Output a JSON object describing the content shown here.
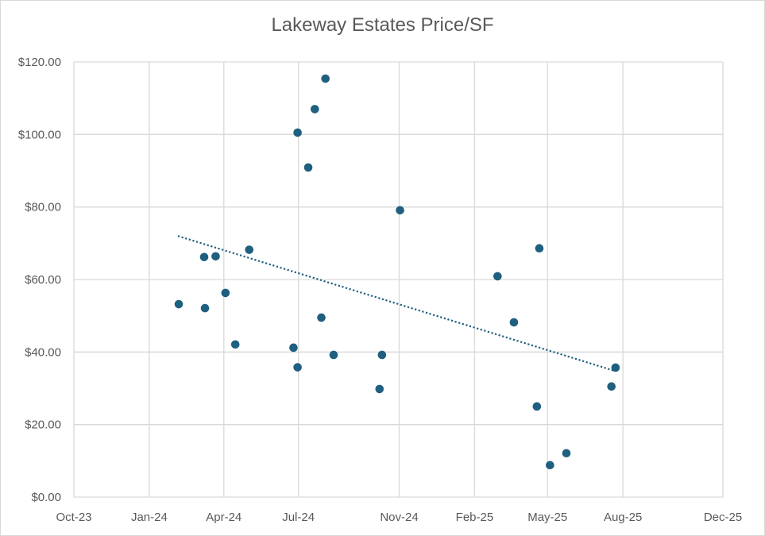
{
  "chart_data": {
    "type": "scatter",
    "title": "Lakeway Estates Price/SF",
    "xlabel": "",
    "ylabel": "",
    "x_axis": {
      "type": "date",
      "min": "2023-10-01",
      "max": "2025-12-01",
      "ticks": [
        {
          "date": "2023-10-01",
          "label": "Oct-23"
        },
        {
          "date": "2024-01-01",
          "label": "Jan-24"
        },
        {
          "date": "2024-04-01",
          "label": "Apr-24"
        },
        {
          "date": "2024-07-01",
          "label": "Jul-24"
        },
        {
          "date": "2024-11-01",
          "label": "Nov-24"
        },
        {
          "date": "2025-02-01",
          "label": "Feb-25"
        },
        {
          "date": "2025-05-01",
          "label": "May-25"
        },
        {
          "date": "2025-08-01",
          "label": "Aug-25"
        },
        {
          "date": "2025-12-01",
          "label": "Dec-25"
        }
      ]
    },
    "y_axis": {
      "min": 0,
      "max": 120,
      "ticks": [
        {
          "value": 0,
          "label": "$0.00"
        },
        {
          "value": 20,
          "label": "$20.00"
        },
        {
          "value": 40,
          "label": "$40.00"
        },
        {
          "value": 60,
          "label": "$60.00"
        },
        {
          "value": 80,
          "label": "$80.00"
        },
        {
          "value": 100,
          "label": "$100.00"
        },
        {
          "value": 120,
          "label": "$120.00"
        }
      ]
    },
    "grid": true,
    "series": [
      {
        "color": "#1f5f7f",
        "points": [
          {
            "x": "2024-02-06",
            "y": 53.2
          },
          {
            "x": "2024-03-08",
            "y": 66.2
          },
          {
            "x": "2024-03-09",
            "y": 52.1
          },
          {
            "x": "2024-03-22",
            "y": 66.4
          },
          {
            "x": "2024-04-03",
            "y": 56.3
          },
          {
            "x": "2024-04-15",
            "y": 42.1
          },
          {
            "x": "2024-05-02",
            "y": 68.2
          },
          {
            "x": "2024-06-25",
            "y": 41.2
          },
          {
            "x": "2024-06-30",
            "y": 100.5
          },
          {
            "x": "2024-06-30",
            "y": 35.8
          },
          {
            "x": "2024-07-13",
            "y": 90.9
          },
          {
            "x": "2024-07-21",
            "y": 107.0
          },
          {
            "x": "2024-07-29",
            "y": 49.5
          },
          {
            "x": "2024-08-03",
            "y": 115.4
          },
          {
            "x": "2024-08-13",
            "y": 39.2
          },
          {
            "x": "2024-10-08",
            "y": 29.8
          },
          {
            "x": "2024-10-11",
            "y": 39.2
          },
          {
            "x": "2024-11-02",
            "y": 79.1
          },
          {
            "x": "2025-03-01",
            "y": 60.9
          },
          {
            "x": "2025-03-21",
            "y": 48.2
          },
          {
            "x": "2025-04-18",
            "y": 25.0
          },
          {
            "x": "2025-04-21",
            "y": 68.6
          },
          {
            "x": "2025-05-04",
            "y": 8.8
          },
          {
            "x": "2025-05-24",
            "y": 12.1
          },
          {
            "x": "2025-07-18",
            "y": 30.5
          },
          {
            "x": "2025-07-23",
            "y": 35.7
          }
        ]
      }
    ],
    "trendline": {
      "style": "dotted",
      "color": "#1f5f7f",
      "points": [
        {
          "x": "2024-02-05",
          "y": 72.0
        },
        {
          "x": "2025-07-22",
          "y": 34.8
        }
      ]
    }
  }
}
